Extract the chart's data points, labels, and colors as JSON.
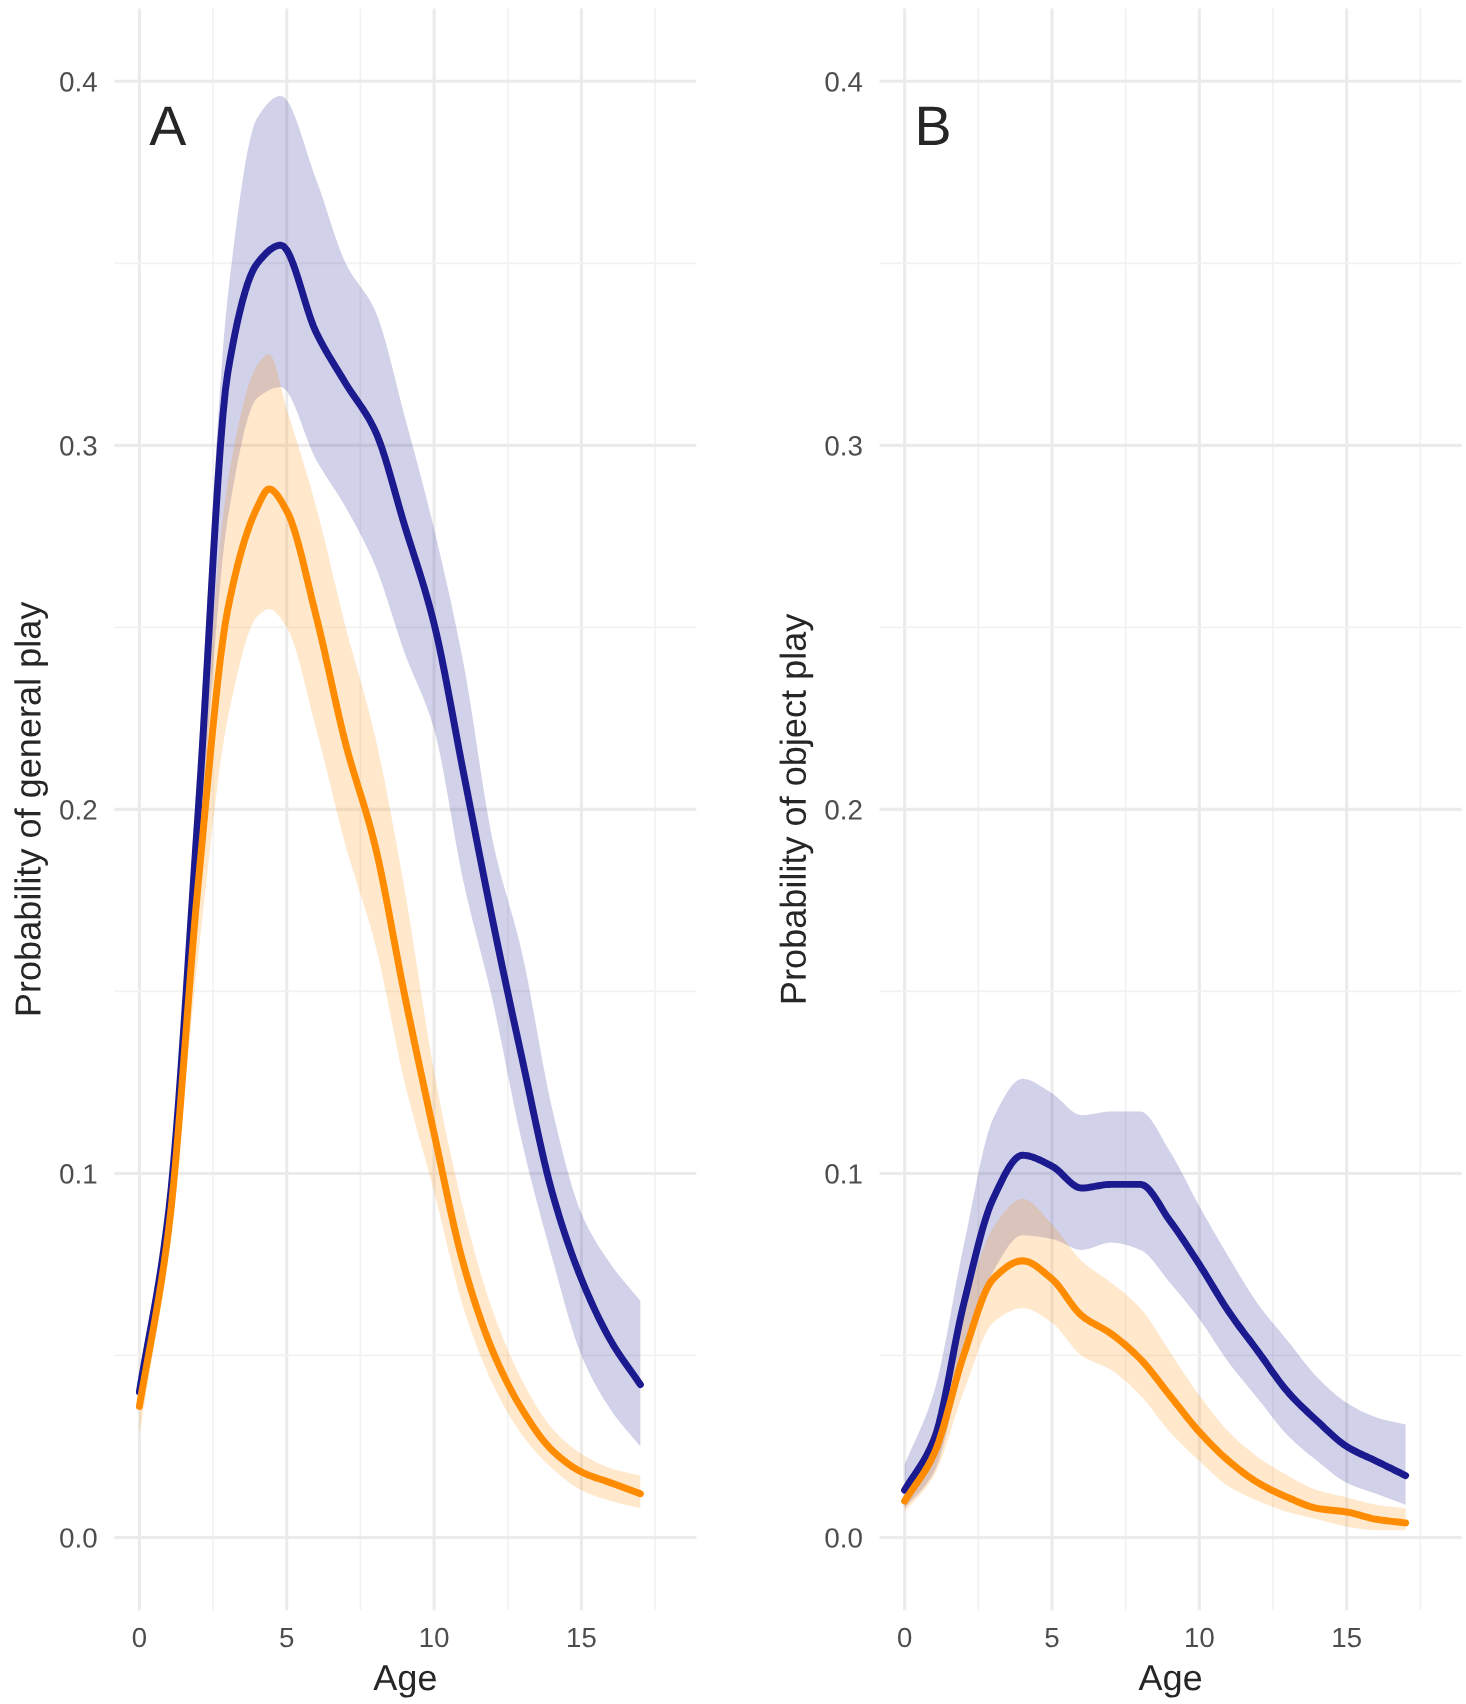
{
  "chart_data": [
    {
      "type": "line",
      "xlabel": "Age",
      "ylabel": "Probability of general play",
      "annotations": [
        "A"
      ],
      "xlim": [
        -0.85,
        18.9
      ],
      "xticks": [
        0,
        5,
        10,
        15
      ],
      "ylim": [
        -0.02,
        0.42
      ],
      "yticks": [
        {
          "value": 0,
          "label": "0.0"
        },
        0.1,
        0.2,
        0.3,
        0.4
      ],
      "grid": true,
      "legend": false,
      "series": [
        {
          "color": "#1b1b8f",
          "x": [
            0,
            1,
            2,
            3,
            4,
            4.8,
            6,
            7,
            8,
            9,
            10,
            11,
            12,
            13,
            14,
            15,
            16,
            17
          ],
          "values": [
            0.04,
            0.09,
            0.2,
            0.32,
            0.35,
            0.355,
            0.331,
            0.317,
            0.304,
            0.278,
            0.251,
            0.21,
            0.169,
            0.131,
            0.095,
            0.071,
            0.054,
            0.042
          ],
          "upper": [
            0.045,
            0.095,
            0.215,
            0.341,
            0.39,
            0.396,
            0.373,
            0.35,
            0.337,
            0.308,
            0.277,
            0.24,
            0.191,
            0.16,
            0.118,
            0.089,
            0.075,
            0.065
          ],
          "lower": [
            0.035,
            0.085,
            0.185,
            0.28,
            0.313,
            0.316,
            0.296,
            0.283,
            0.267,
            0.243,
            0.222,
            0.18,
            0.147,
            0.108,
            0.077,
            0.05,
            0.035,
            0.025
          ]
        },
        {
          "color": "#ff8c00",
          "x": [
            0,
            1,
            2,
            3,
            4,
            4.4,
            5,
            6,
            7,
            8,
            9,
            10,
            11,
            12,
            13,
            14,
            15,
            16,
            17
          ],
          "values": [
            0.036,
            0.085,
            0.18,
            0.255,
            0.283,
            0.288,
            0.282,
            0.253,
            0.218,
            0.19,
            0.149,
            0.111,
            0.075,
            0.051,
            0.035,
            0.024,
            0.018,
            0.015,
            0.012
          ],
          "upper": [
            0.04,
            0.09,
            0.2,
            0.29,
            0.322,
            0.325,
            0.31,
            0.283,
            0.25,
            0.22,
            0.178,
            0.128,
            0.09,
            0.062,
            0.043,
            0.03,
            0.023,
            0.019,
            0.017
          ],
          "lower": [
            0.028,
            0.08,
            0.16,
            0.225,
            0.253,
            0.255,
            0.25,
            0.222,
            0.19,
            0.163,
            0.125,
            0.095,
            0.063,
            0.042,
            0.028,
            0.019,
            0.013,
            0.01,
            0.008
          ]
        }
      ]
    },
    {
      "type": "line",
      "xlabel": "Age",
      "ylabel": "Probability of object play",
      "annotations": [
        "B"
      ],
      "xlim": [
        -0.85,
        18.9
      ],
      "xticks": [
        0,
        5,
        10,
        15
      ],
      "ylim": [
        -0.02,
        0.42
      ],
      "yticks": [
        {
          "value": 0,
          "label": "0.0"
        },
        0.1,
        0.2,
        0.3,
        0.4
      ],
      "grid": true,
      "legend": false,
      "series": [
        {
          "color": "#1b1b8f",
          "x": [
            0,
            1,
            2,
            3,
            4,
            5,
            6,
            7,
            8,
            9,
            10,
            11,
            12,
            13,
            14,
            15,
            16,
            17
          ],
          "values": [
            0.013,
            0.027,
            0.064,
            0.093,
            0.105,
            0.102,
            0.096,
            0.097,
            0.097,
            0.087,
            0.075,
            0.062,
            0.051,
            0.04,
            0.032,
            0.025,
            0.021,
            0.017
          ],
          "upper": [
            0.02,
            0.04,
            0.08,
            0.115,
            0.126,
            0.122,
            0.116,
            0.117,
            0.117,
            0.106,
            0.091,
            0.077,
            0.064,
            0.054,
            0.044,
            0.037,
            0.033,
            0.031
          ],
          "lower": [
            0.008,
            0.018,
            0.048,
            0.073,
            0.083,
            0.082,
            0.079,
            0.081,
            0.079,
            0.07,
            0.06,
            0.048,
            0.038,
            0.028,
            0.021,
            0.015,
            0.012,
            0.009
          ]
        },
        {
          "color": "#ff8c00",
          "x": [
            0,
            1,
            2,
            3,
            4,
            5,
            6,
            7,
            8,
            9,
            10,
            11,
            12,
            13,
            14,
            15,
            16,
            17
          ],
          "values": [
            0.01,
            0.023,
            0.05,
            0.071,
            0.076,
            0.071,
            0.061,
            0.056,
            0.049,
            0.039,
            0.029,
            0.021,
            0.015,
            0.011,
            0.008,
            0.007,
            0.005,
            0.004
          ],
          "upper": [
            0.013,
            0.03,
            0.062,
            0.085,
            0.093,
            0.086,
            0.076,
            0.07,
            0.063,
            0.051,
            0.039,
            0.029,
            0.022,
            0.017,
            0.013,
            0.011,
            0.009,
            0.008
          ],
          "lower": [
            0.007,
            0.017,
            0.04,
            0.059,
            0.063,
            0.059,
            0.05,
            0.046,
            0.039,
            0.029,
            0.021,
            0.014,
            0.01,
            0.007,
            0.005,
            0.003,
            0.002,
            0.002
          ]
        }
      ]
    }
  ]
}
